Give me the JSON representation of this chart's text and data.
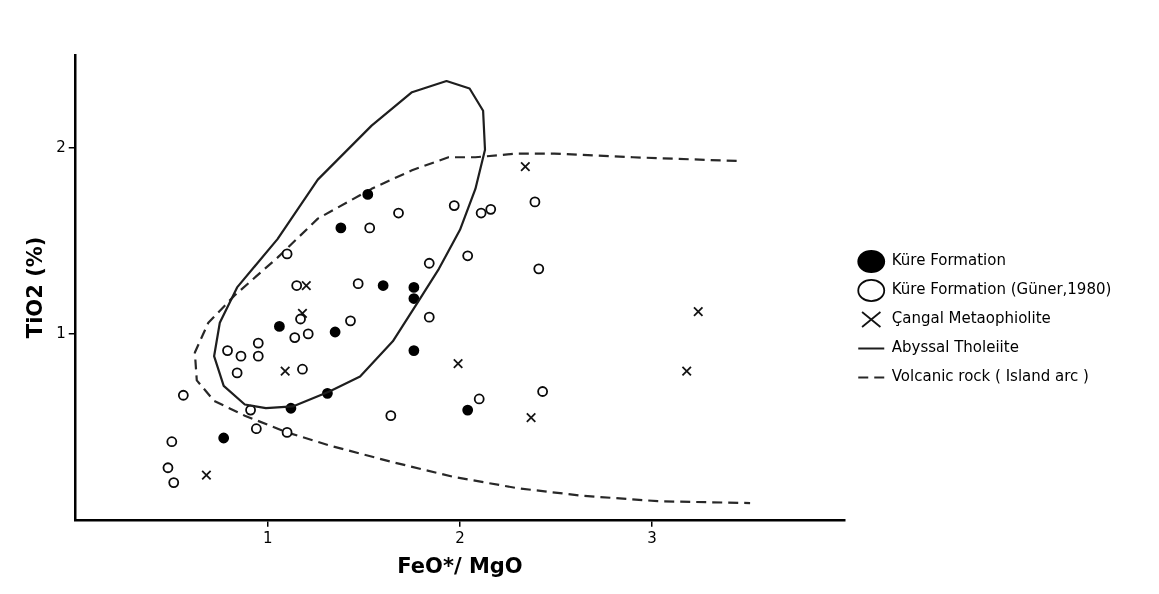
{
  "chart_data": {
    "type": "scatter",
    "xlabel": "FeO*/ MgO",
    "ylabel": "TiO2 (%)",
    "xlim": [
      0,
      4
    ],
    "ylim": [
      0,
      2.5
    ],
    "xticks": [
      1,
      2,
      3
    ],
    "yticks": [
      1,
      2
    ],
    "grid": false,
    "legend": "right",
    "annotations": [
      "Abyssal Tholeiite"
    ],
    "series": [
      {
        "name": "Küre Formation",
        "color": "#000000",
        "marker": "circle",
        "x": [
          0.77,
          1.06,
          1.12,
          1.31,
          1.35,
          1.38,
          1.52,
          1.6,
          1.76,
          1.76,
          1.76,
          2.04
        ],
        "values": [
          0.44,
          1.04,
          0.6,
          0.68,
          1.01,
          1.57,
          1.75,
          1.26,
          1.25,
          1.19,
          0.91,
          0.59
        ]
      },
      {
        "name": "Küre Formation (Güner,1980)",
        "color": "#0a0a0a",
        "marker": "open circle",
        "x": [
          0.5,
          0.48,
          0.51,
          0.56,
          0.79,
          0.86,
          0.95,
          0.95,
          0.84,
          0.91,
          0.94,
          1.1,
          1.1,
          1.15,
          1.14,
          1.21,
          1.18,
          1.17,
          1.43,
          1.47,
          1.53,
          1.68,
          1.64,
          1.84,
          1.84,
          1.97,
          2.04,
          2.11,
          2.16,
          2.1,
          2.39,
          2.41,
          2.43
        ],
        "values": [
          0.42,
          0.28,
          0.2,
          0.67,
          0.91,
          0.88,
          0.95,
          0.88,
          0.79,
          0.59,
          0.49,
          1.43,
          0.47,
          1.26,
          0.98,
          1.0,
          0.81,
          1.08,
          1.07,
          1.27,
          1.57,
          1.65,
          0.56,
          1.38,
          1.09,
          1.69,
          1.42,
          1.65,
          1.67,
          0.65,
          1.71,
          1.35,
          0.69
        ]
      },
      {
        "name": "Çangal Metaophiolite",
        "color": "#141414",
        "marker": "cross",
        "x": [
          0.68,
          1.2,
          1.18,
          1.09,
          1.99,
          2.34,
          2.37,
          3.24,
          3.18
        ],
        "values": [
          0.24,
          1.26,
          1.11,
          0.8,
          0.84,
          1.9,
          0.55,
          1.12,
          0.8
        ]
      },
      {
        "name": "Volcanic rock ( Island arc )",
        "type": "line",
        "color": "#282828",
        "line_style": "dashed",
        "marker": "none",
        "x": [
          3.44,
          2.9,
          2.49,
          2.3,
          2.08,
          1.94,
          1.75,
          1.54,
          1.26,
          1.05,
          0.83,
          0.69,
          0.62,
          0.63,
          0.72,
          0.88,
          1.1,
          1.32,
          1.65,
          1.97,
          2.3,
          2.63,
          3.03,
          3.51
        ],
        "values": [
          1.93,
          1.95,
          1.97,
          1.97,
          1.95,
          1.95,
          1.88,
          1.78,
          1.62,
          1.41,
          1.21,
          1.06,
          0.9,
          0.75,
          0.64,
          0.56,
          0.47,
          0.4,
          0.31,
          0.23,
          0.17,
          0.13,
          0.1,
          0.09
        ]
      }
    ]
  }
}
